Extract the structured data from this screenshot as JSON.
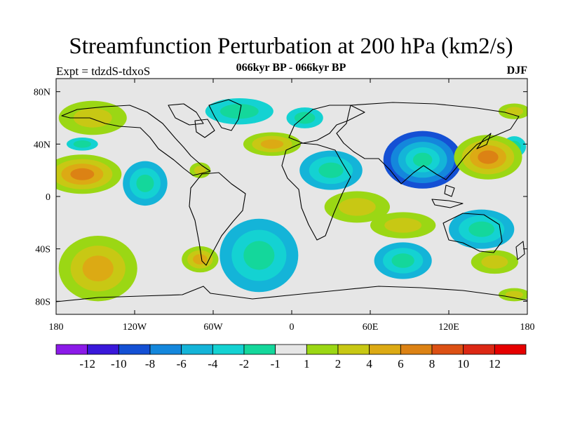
{
  "title": "Streamfunction Perturbation at 200 hPa (km2/s)",
  "left_label": "Expt = tdzdS-tdxoS",
  "center_label": "066kyr BP - 066kyr BP",
  "right_label": "DJF",
  "chart_data": {
    "type": "heatmap",
    "projection": "cylindrical-equidistant",
    "xlim": [
      -180,
      180
    ],
    "ylim": [
      -90,
      90
    ],
    "x_ticks": [
      {
        "value": -180,
        "label": "180"
      },
      {
        "value": -120,
        "label": "120W"
      },
      {
        "value": -60,
        "label": "60W"
      },
      {
        "value": 0,
        "label": "0"
      },
      {
        "value": 60,
        "label": "60E"
      },
      {
        "value": 120,
        "label": "120E"
      },
      {
        "value": 180,
        "label": "180"
      }
    ],
    "y_ticks": [
      {
        "value": 80,
        "label": "80N"
      },
      {
        "value": 40,
        "label": "40N"
      },
      {
        "value": 0,
        "label": "0"
      },
      {
        "value": -40,
        "label": "40S"
      },
      {
        "value": -80,
        "label": "80S"
      }
    ],
    "colorbar": {
      "labels": [
        "-12",
        "-10",
        "-8",
        "-6",
        "-4",
        "-2",
        "-1",
        "1",
        "2",
        "4",
        "6",
        "8",
        "10",
        "12"
      ],
      "colors": [
        "#8b1ae8",
        "#3a18da",
        "#1450d4",
        "#1487dc",
        "#14b4d8",
        "#14d2d2",
        "#14d79b",
        "#e6e6e6",
        "#9bd714",
        "#c8c814",
        "#dcaa14",
        "#dc8214",
        "#dc5014",
        "#dc2814",
        "#e60000"
      ]
    },
    "features": [
      {
        "lon": -160,
        "lat": 17,
        "rx": 30,
        "ry": 15,
        "value": 6
      },
      {
        "lon": -152,
        "lat": 60,
        "rx": 26,
        "ry": 13,
        "value": 2
      },
      {
        "lon": -160,
        "lat": 40,
        "rx": 12,
        "ry": 5,
        "value": -2
      },
      {
        "lon": -112,
        "lat": 10,
        "rx": 17,
        "ry": 17,
        "value": -4
      },
      {
        "lon": -70,
        "lat": 20,
        "rx": 8,
        "ry": 6,
        "value": 2
      },
      {
        "lon": -40,
        "lat": 65,
        "rx": 26,
        "ry": 10,
        "value": -2
      },
      {
        "lon": -15,
        "lat": 40,
        "rx": 22,
        "ry": 9,
        "value": 4
      },
      {
        "lon": 10,
        "lat": 60,
        "rx": 14,
        "ry": 8,
        "value": -2
      },
      {
        "lon": 30,
        "lat": 20,
        "rx": 24,
        "ry": 15,
        "value": -4
      },
      {
        "lon": 170,
        "lat": 65,
        "rx": 12,
        "ry": 6,
        "value": 2
      },
      {
        "lon": 170,
        "lat": 38,
        "rx": 9,
        "ry": 8,
        "value": -2
      },
      {
        "lon": 100,
        "lat": 28,
        "rx": 30,
        "ry": 22,
        "value": -8
      },
      {
        "lon": 150,
        "lat": 30,
        "rx": 26,
        "ry": 17,
        "value": 6
      },
      {
        "lon": 50,
        "lat": -8,
        "rx": 25,
        "ry": 12,
        "value": 2
      },
      {
        "lon": 85,
        "lat": -22,
        "rx": 25,
        "ry": 10,
        "value": 2
      },
      {
        "lon": -148,
        "lat": -55,
        "rx": 30,
        "ry": 25,
        "value": 4
      },
      {
        "lon": -25,
        "lat": -45,
        "rx": 30,
        "ry": 28,
        "value": -4
      },
      {
        "lon": -70,
        "lat": -48,
        "rx": 14,
        "ry": 10,
        "value": 4
      },
      {
        "lon": 85,
        "lat": -49,
        "rx": 22,
        "ry": 14,
        "value": -4
      },
      {
        "lon": 145,
        "lat": -25,
        "rx": 25,
        "ry": 15,
        "value": -4
      },
      {
        "lon": 155,
        "lat": -50,
        "rx": 18,
        "ry": 9,
        "value": 2
      },
      {
        "lon": 170,
        "lat": -75,
        "rx": 12,
        "ry": 5,
        "value": 2
      }
    ]
  }
}
